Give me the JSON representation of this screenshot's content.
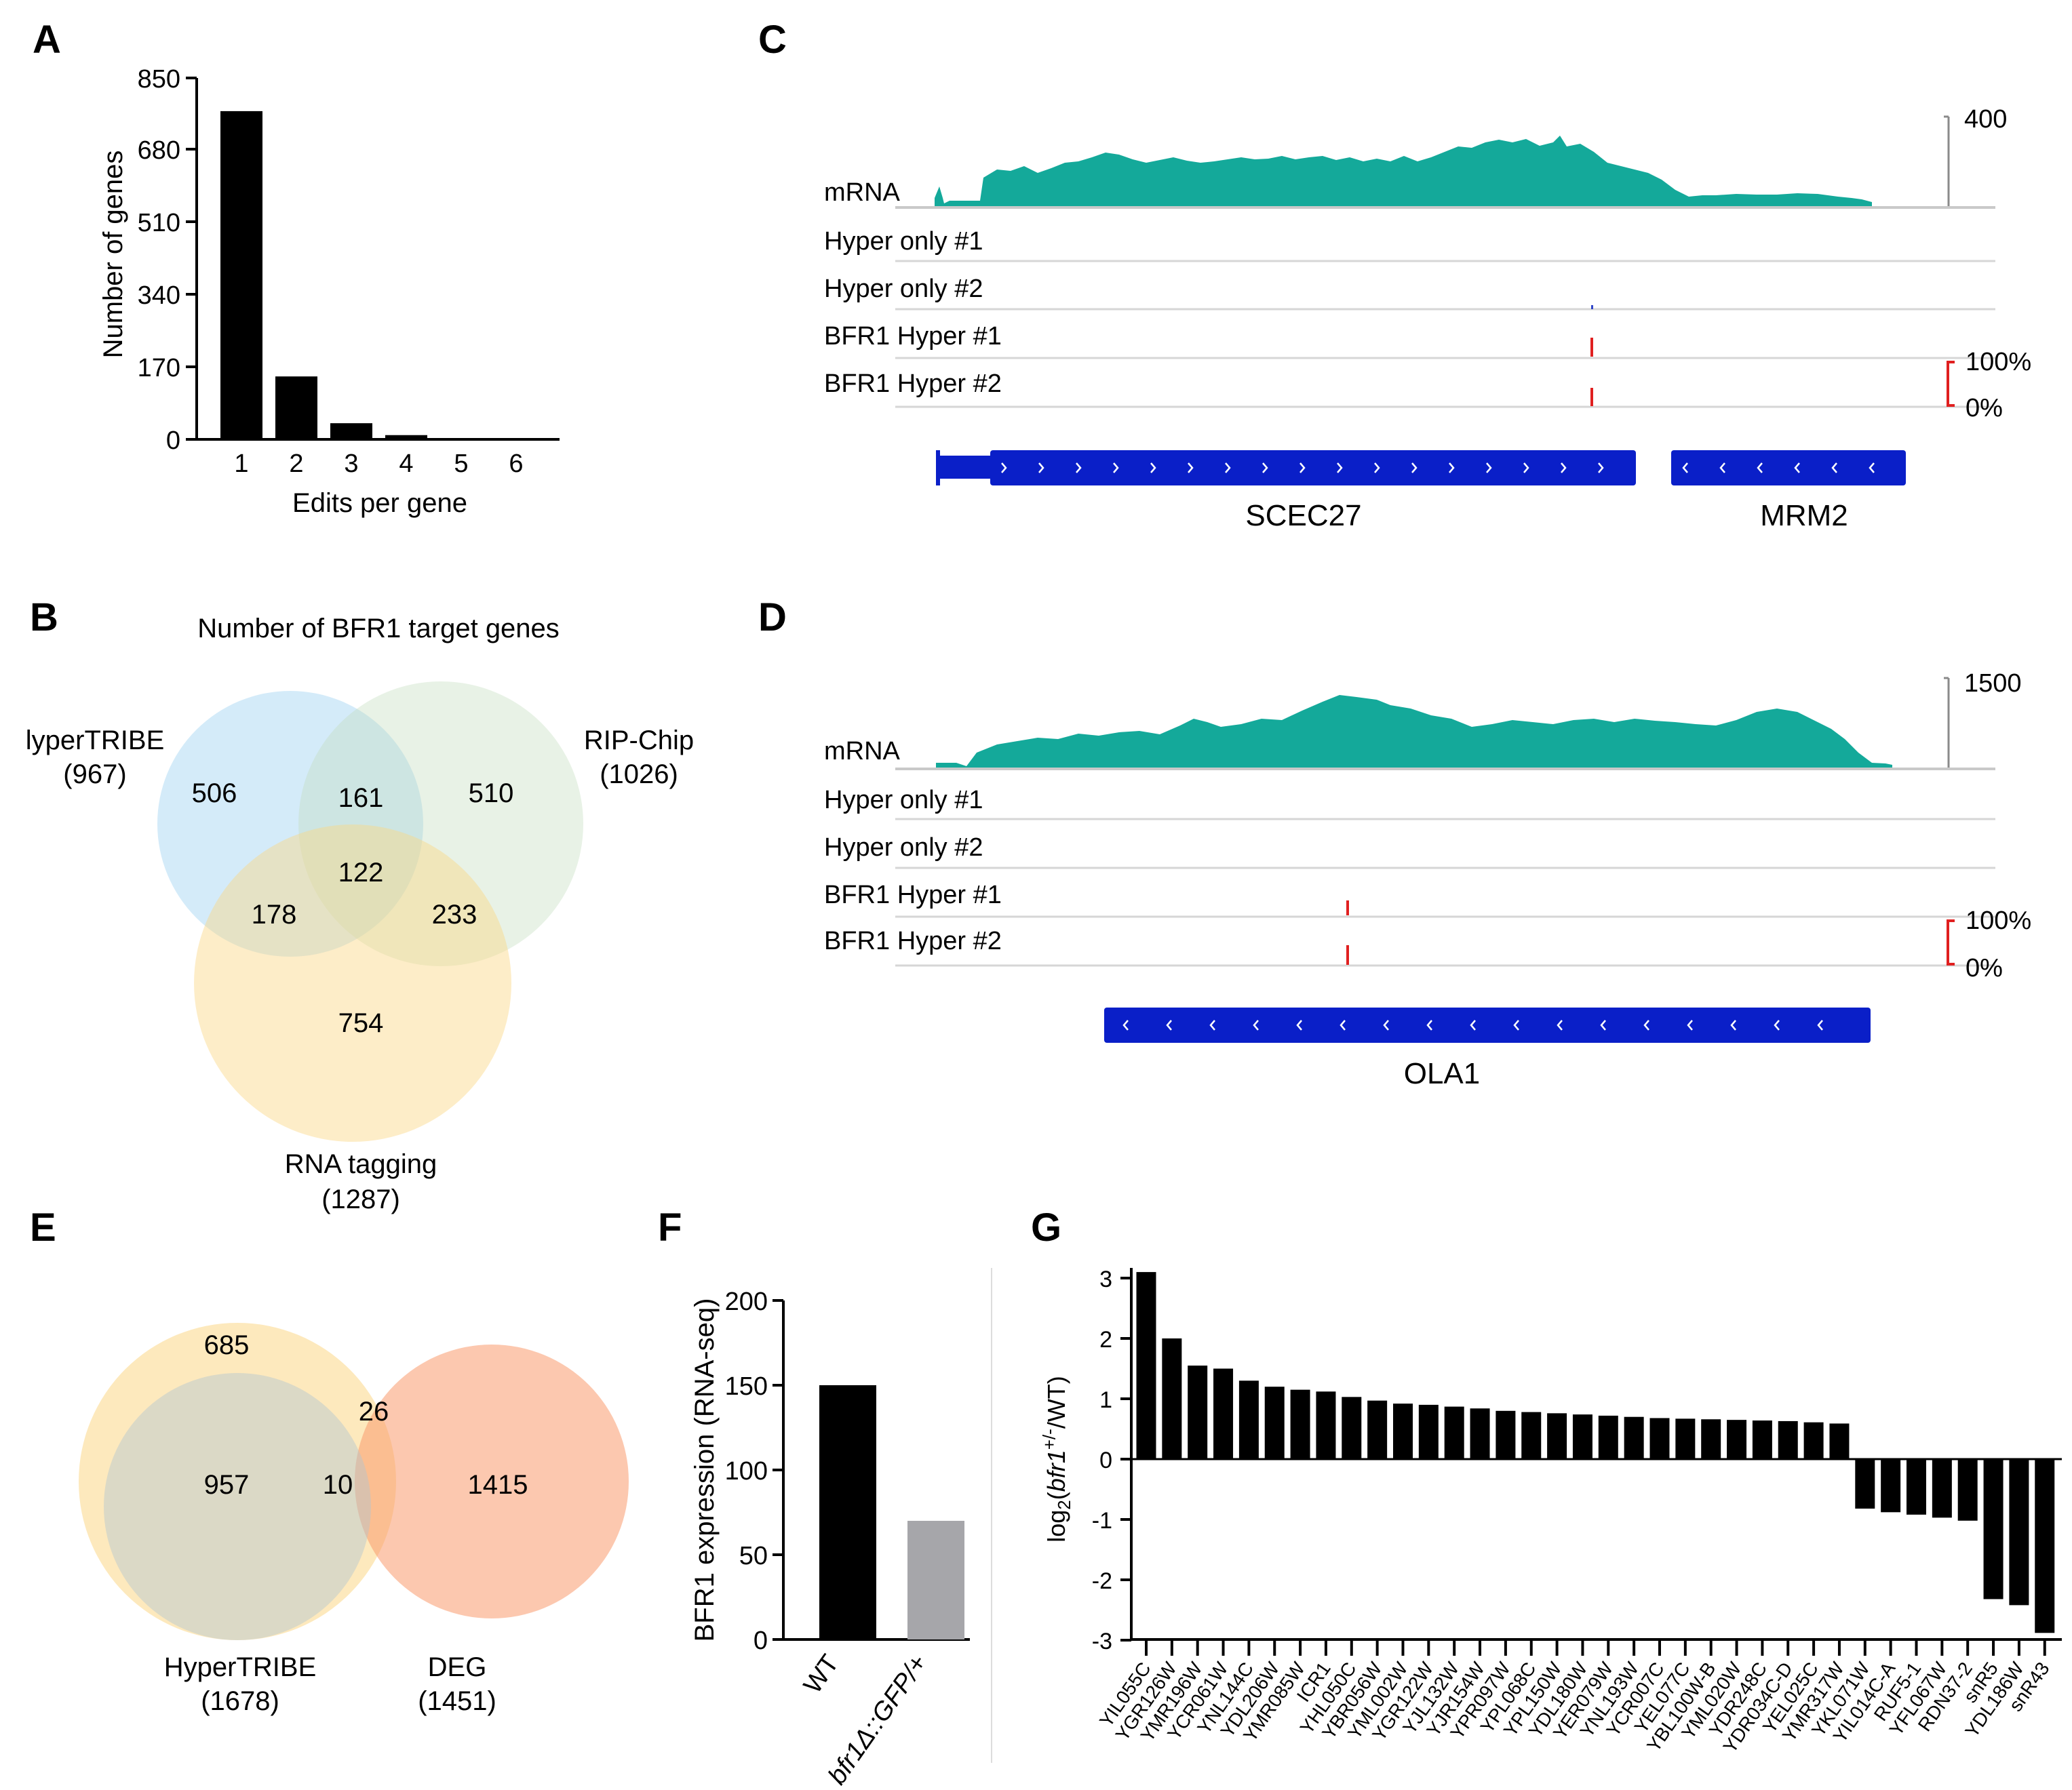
{
  "panel_labels": {
    "a": "A",
    "b": "B",
    "c": "C",
    "d": "D",
    "e": "E",
    "f": "F",
    "g": "G"
  },
  "colors": {
    "teal": "#14a99a",
    "blue": "#0a1fc8",
    "red": "#e02020",
    "bar": "#000000",
    "grey_bar": "#a6a6aa"
  },
  "panel_a": {
    "chart_data": {
      "type": "bar",
      "categories": [
        "1",
        "2",
        "3",
        "4",
        "5",
        "6"
      ],
      "values": [
        772,
        148,
        38,
        10,
        2,
        1
      ],
      "ylim": [
        0,
        850
      ],
      "yticks": [
        "0",
        "170",
        "340",
        "510",
        "680",
        "850"
      ],
      "xlabel": "Edits per gene",
      "ylabel": "Number of genes"
    }
  },
  "panel_b": {
    "title": "Number of BFR1 target genes",
    "hypertribe_name": "lyperTRIBE",
    "hypertribe_total": "(967)",
    "ripchip_name": "RIP-Chip",
    "ripchip_total": "(1026)",
    "rnatag_name": "RNA tagging",
    "rnatag_total": "(1287)",
    "counts": {
      "h_only": "506",
      "hr": "161",
      "r_only": "510",
      "all": "122",
      "ht": "178",
      "rt": "233",
      "t_only": "754"
    }
  },
  "panel_c": {
    "scale_max": "400",
    "pct_max": "100%",
    "pct_min": "0%",
    "tracks": [
      "mRNA",
      "Hyper only #1",
      "Hyper only #2",
      "BFR1 Hyper #1",
      "BFR1 Hyper #2"
    ],
    "gene1": "SCEC27",
    "gene2": "MRM2"
  },
  "panel_d": {
    "scale_max": "1500",
    "pct_max": "100%",
    "pct_min": "0%",
    "tracks": [
      "mRNA",
      "Hyper only #1",
      "Hyper only #2",
      "BFR1 Hyper #1",
      "BFR1 Hyper #2"
    ],
    "gene1": "OLA1"
  },
  "panel_e": {
    "left_name": "HyperTRIBE",
    "left_total": "(1678)",
    "right_name": "DEG",
    "right_total": "(1451)",
    "counts": {
      "top": "685",
      "left": "957",
      "center": "10",
      "upper_mid": "26",
      "right": "1415"
    }
  },
  "panel_f": {
    "chart_data": {
      "type": "bar",
      "categories": [
        "WT",
        "bfr1Δ::GFP/+"
      ],
      "values": [
        150,
        70
      ],
      "ylim": [
        0,
        200
      ],
      "yticks": [
        "0",
        "50",
        "100",
        "150",
        "200"
      ],
      "ylabel": "BFR1 expression (RNA-seq)"
    }
  },
  "panel_g": {
    "chart_data": {
      "type": "bar",
      "ylabel": "log₂(bfr1+/-/WT)",
      "ylim": [
        -3,
        3
      ],
      "yticks": [
        "-3",
        "-2",
        "-1",
        "0",
        "1",
        "2",
        "3"
      ],
      "categories": [
        "YIL055C",
        "YGR126W",
        "YMR196W",
        "YCR061W",
        "YNL144C",
        "YDL206W",
        "YMR085W",
        "ICR1",
        "YHL050C",
        "YBR056W",
        "YML002W",
        "YGR122W",
        "YJL132W",
        "YJR154W",
        "YPR097W",
        "YPL068C",
        "YPL150W",
        "YDL180W",
        "YER079W",
        "YNL193W",
        "YCR007C",
        "YEL077C",
        "YBL100W-B",
        "YML020W",
        "YDR248C",
        "YDR034C-D",
        "YEL025C",
        "YMR317W",
        "YKL071W",
        "YIL014C-A",
        "RUF5-1",
        "YFL067W",
        "RDN37-2",
        "snR5",
        "YDL186W",
        "snR43"
      ],
      "values": [
        3.1,
        2.0,
        1.55,
        1.5,
        1.3,
        1.2,
        1.15,
        1.12,
        1.03,
        0.97,
        0.92,
        0.9,
        0.87,
        0.84,
        0.8,
        0.78,
        0.76,
        0.74,
        0.72,
        0.7,
        0.68,
        0.67,
        0.66,
        0.65,
        0.64,
        0.63,
        0.61,
        0.59,
        -0.82,
        -0.88,
        -0.92,
        -0.97,
        -1.02,
        -2.32,
        -2.42,
        -2.88
      ]
    }
  }
}
